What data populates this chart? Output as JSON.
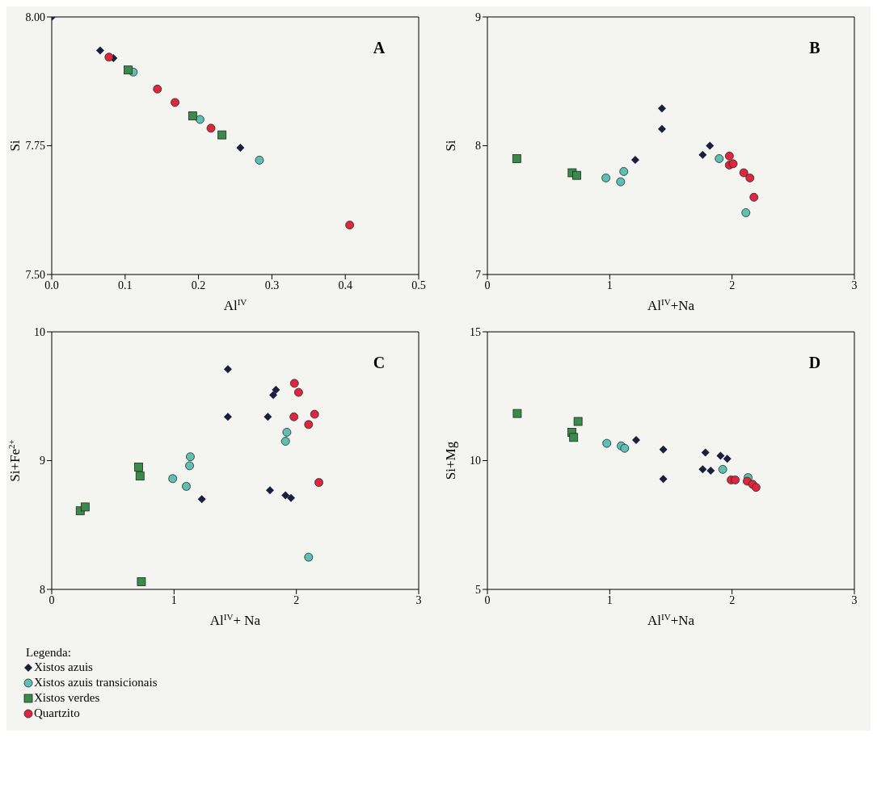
{
  "chart_data": [
    {
      "type": "scatter",
      "title": "A",
      "xlabel": "Al$^{IV}$",
      "ylabel": "Si",
      "xlim": [
        0,
        0.5
      ],
      "ylim": [
        7.5,
        8.0
      ],
      "xticks": [
        {
          "value": 0,
          "label": "0.0"
        },
        0.1,
        0.2,
        0.3,
        0.4,
        0.5
      ],
      "yticks": [
        {
          "value": 7.5,
          "label": "7.50"
        },
        7.75,
        {
          "value": 8,
          "label": "8.00"
        }
      ],
      "legend": false,
      "series": [
        {
          "color": "#1a1f3d",
          "marker": "diamond",
          "x": [
            0,
            0.066,
            0.084,
            0.257
          ],
          "values": [
            8.0,
            7.935,
            7.92,
            7.746
          ]
        },
        {
          "color": "#5fbfb5",
          "marker": "circle",
          "x": [
            0.111,
            0.202,
            0.283
          ],
          "values": [
            7.893,
            7.801,
            7.722
          ]
        },
        {
          "color": "#3a8a4a",
          "marker": "square",
          "x": [
            0.104,
            0.192,
            0.232
          ],
          "values": [
            7.897,
            7.808,
            7.771
          ]
        },
        {
          "color": "#e0253f",
          "marker": "circle",
          "x": [
            0.078,
            0.144,
            0.168,
            0.217,
            0.406
          ],
          "values": [
            7.922,
            7.86,
            7.834,
            7.784,
            7.596
          ]
        }
      ]
    },
    {
      "type": "scatter",
      "title": "B",
      "xlabel": "Al$^{IV}$+Na",
      "ylabel": "Si",
      "xlim": [
        0,
        3
      ],
      "ylim": [
        7,
        9
      ],
      "xticks": [
        0,
        1,
        2,
        3
      ],
      "yticks": [
        7,
        8,
        9
      ],
      "legend": false,
      "series": [
        {
          "color": "#1a1f3d",
          "marker": "diamond",
          "x": [
            1.427,
            1.427,
            1.209,
            1.76,
            1.819
          ],
          "values": [
            8.29,
            8.13,
            7.89,
            7.93,
            8.0
          ]
        },
        {
          "color": "#5fbfb5",
          "marker": "circle",
          "x": [
            0.969,
            1.089,
            1.115,
            1.895,
            2.113
          ],
          "values": [
            7.75,
            7.72,
            7.8,
            7.9,
            7.48
          ]
        },
        {
          "color": "#3a8a4a",
          "marker": "square",
          "x": [
            0.24,
            0.693,
            0.73
          ],
          "values": [
            7.9,
            7.79,
            7.77
          ]
        },
        {
          "color": "#e0253f",
          "marker": "circle",
          "x": [
            1.978,
            1.978,
            2.009,
            2.096,
            2.146,
            2.179
          ],
          "values": [
            7.92,
            7.85,
            7.86,
            7.79,
            7.75,
            7.6
          ]
        }
      ]
    },
    {
      "type": "scatter",
      "title": "C",
      "xlabel": "Al$^{IV}$+ Na",
      "ylabel": "Si+Fe$^{2+}$",
      "xlim": [
        0,
        3
      ],
      "ylim": [
        8,
        10
      ],
      "xticks": [
        0,
        1,
        2,
        3
      ],
      "yticks": [
        8,
        9,
        10
      ],
      "legend": "bottom",
      "legend_title": "Legenda:",
      "series": [
        {
          "name": "Xistos azuis",
          "color": "#1a1f3d",
          "marker": "diamond",
          "x": [
            1.44,
            1.44,
            1.767,
            1.833,
            1.811,
            1.784,
            1.911,
            1.956,
            1.227
          ],
          "values": [
            9.71,
            9.34,
            9.34,
            9.55,
            9.51,
            8.77,
            8.73,
            8.71,
            8.7
          ]
        },
        {
          "name": "Xistos azuis transicionais",
          "color": "#5fbfb5",
          "marker": "circle",
          "x": [
            1.922,
            1.911,
            1.133,
            1.127,
            0.989,
            1.1,
            2.1
          ],
          "values": [
            9.22,
            9.15,
            9.03,
            8.96,
            8.86,
            8.8,
            8.25
          ]
        },
        {
          "name": "Xistos verdes",
          "color": "#3a8a4a",
          "marker": "square",
          "x": [
            0.711,
            0.722,
            0.233,
            0.273,
            0.733
          ],
          "values": [
            8.95,
            8.88,
            8.61,
            8.64,
            8.06
          ]
        },
        {
          "name": "Quartzito",
          "color": "#e0253f",
          "marker": "circle",
          "x": [
            1.984,
            2.018,
            1.98,
            2.149,
            2.1,
            2.184
          ],
          "values": [
            9.6,
            9.53,
            9.34,
            9.36,
            9.28,
            8.83
          ]
        }
      ]
    },
    {
      "type": "scatter",
      "title": "D",
      "xlabel": "Al$^{IV}$+Na",
      "ylabel": "Si+Mg",
      "xlim": [
        0,
        3
      ],
      "ylim": [
        5,
        15
      ],
      "xticks": [
        0,
        1,
        2,
        3
      ],
      "yticks": [
        5,
        10,
        15
      ],
      "legend": false,
      "series": [
        {
          "color": "#1a1f3d",
          "marker": "diamond",
          "x": [
            1.216,
            1.438,
            1.438,
            1.782,
            1.76,
            1.826,
            1.906,
            1.961
          ],
          "values": [
            10.8,
            10.43,
            9.29,
            10.31,
            9.66,
            9.61,
            10.19,
            10.07
          ]
        },
        {
          "color": "#5fbfb5",
          "marker": "circle",
          "x": [
            0.976,
            1.094,
            1.122,
            1.924,
            2.131
          ],
          "values": [
            10.67,
            10.57,
            10.48,
            9.66,
            9.34
          ]
        },
        {
          "color": "#3a8a4a",
          "marker": "square",
          "x": [
            0.244,
            0.741,
            0.69,
            0.705
          ],
          "values": [
            11.83,
            11.52,
            11.1,
            10.9
          ]
        },
        {
          "color": "#e0253f",
          "marker": "circle",
          "x": [
            1.993,
            2.026,
            2.124,
            2.168,
            2.196
          ],
          "values": [
            9.25,
            9.25,
            9.2,
            9.08,
            8.96
          ]
        }
      ]
    }
  ]
}
